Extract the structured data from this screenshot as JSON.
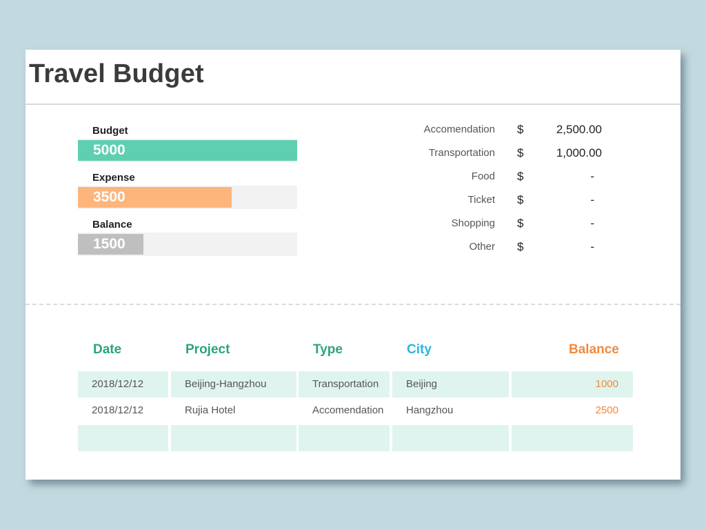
{
  "title": "Travel Budget",
  "colors": {
    "budget": "#5ecfb1",
    "expense": "#fdb57c",
    "balance": "#bfbfbf",
    "header_green": "#2aa47f",
    "header_blue": "#2db6de",
    "header_orange": "#f08a3c"
  },
  "summary": {
    "budget": {
      "label": "Budget",
      "value": "5000",
      "fraction": 1.0
    },
    "expense": {
      "label": "Expense",
      "value": "3500",
      "fraction": 0.7
    },
    "balance": {
      "label": "Balance",
      "value": "1500",
      "fraction": 0.3
    }
  },
  "categories": [
    {
      "name": "Accomendation",
      "currency": "$",
      "amount": "2,500.00"
    },
    {
      "name": "Transportation",
      "currency": "$",
      "amount": "1,000.00"
    },
    {
      "name": "Food",
      "currency": "$",
      "amount": "-"
    },
    {
      "name": "Ticket",
      "currency": "$",
      "amount": "-"
    },
    {
      "name": "Shopping",
      "currency": "$",
      "amount": "-"
    },
    {
      "name": "Other",
      "currency": "$",
      "amount": "-"
    }
  ],
  "table": {
    "headers": {
      "date": "Date",
      "project": "Project",
      "type": "Type",
      "city": "City",
      "balance": "Balance"
    },
    "rows": [
      {
        "date": "2018/12/12",
        "project": "Beijing-Hangzhou",
        "type": "Transportation",
        "city": "Beijing",
        "balance": "1000"
      },
      {
        "date": "2018/12/12",
        "project": "Rujia Hotel",
        "type": "Accomendation",
        "city": "Hangzhou",
        "balance": "2500"
      },
      {
        "date": "",
        "project": "",
        "type": "",
        "city": "",
        "balance": ""
      }
    ]
  }
}
